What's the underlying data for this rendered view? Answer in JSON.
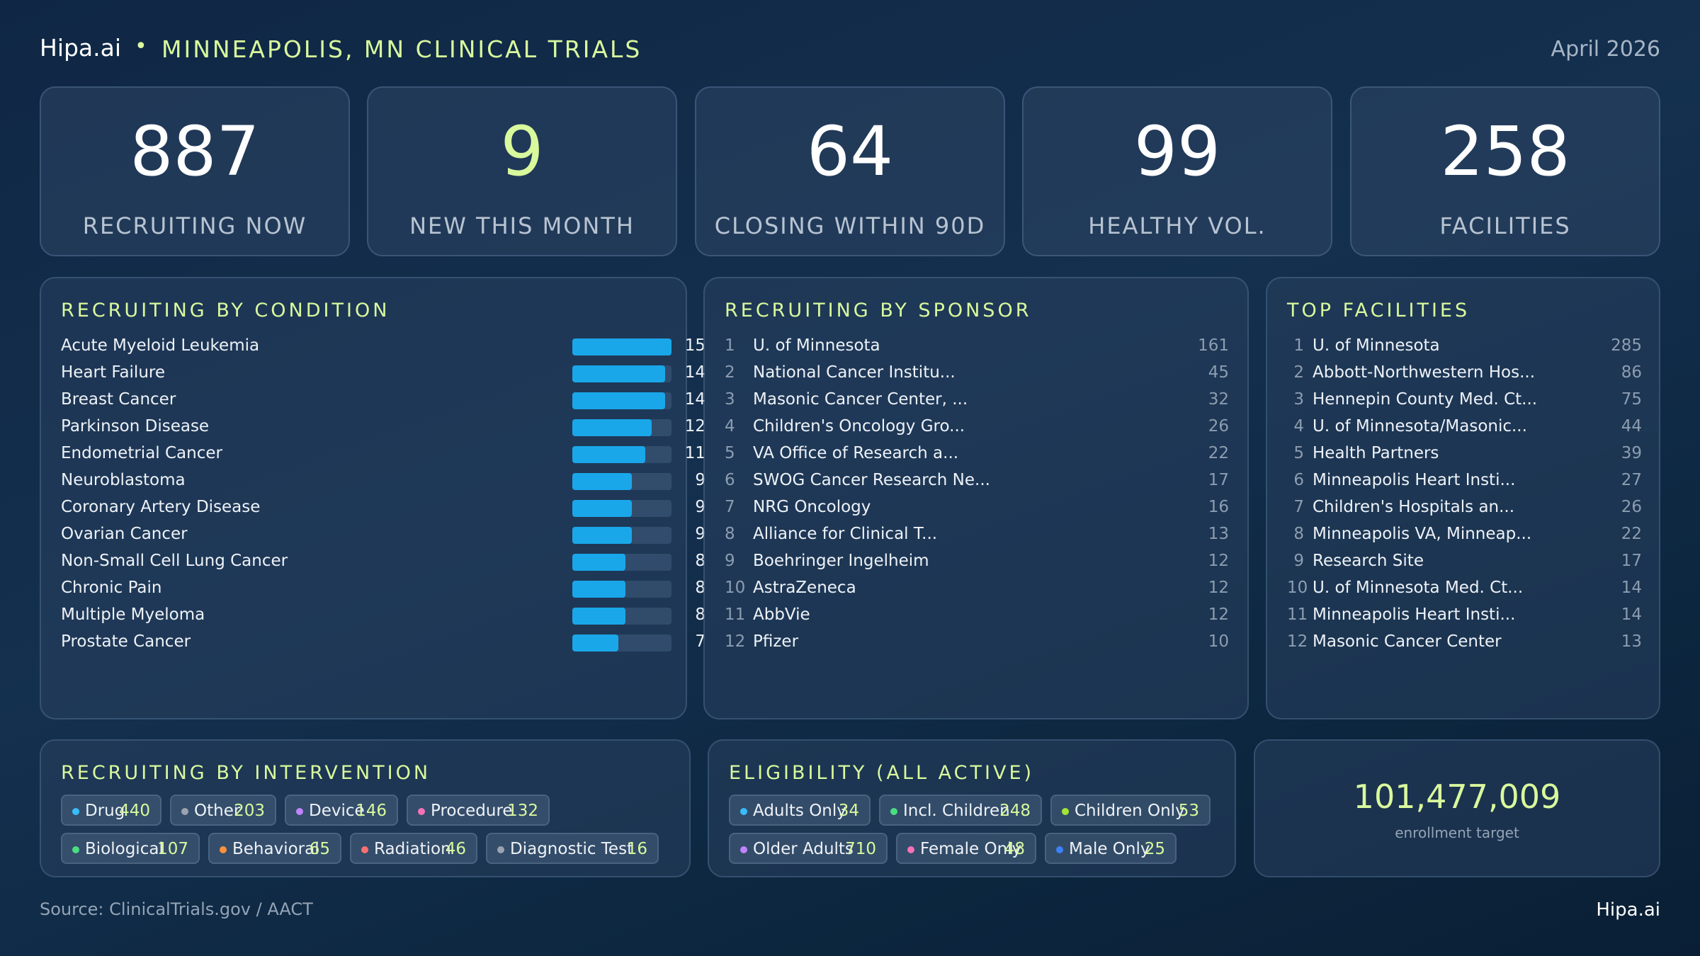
{
  "header": {
    "brand": "Hipa.ai",
    "separator": "•",
    "title": "MINNEAPOLIS, MN CLINICAL TRIALS",
    "date": "April 2026"
  },
  "kpis": [
    {
      "value": "887",
      "label": "RECRUITING NOW"
    },
    {
      "value": "9",
      "label": "NEW THIS MONTH"
    },
    {
      "value": "64",
      "label": "CLOSING WITHIN 90D"
    },
    {
      "value": "99",
      "label": "HEALTHY VOL."
    },
    {
      "value": "258",
      "label": "FACILITIES"
    }
  ],
  "condition": {
    "title": "RECRUITING BY CONDITION",
    "max": 15,
    "bar_color": "#19a7ea",
    "items": [
      {
        "name": "Acute Myeloid Leukemia",
        "value": 15
      },
      {
        "name": "Heart Failure",
        "value": 14
      },
      {
        "name": "Breast Cancer",
        "value": 14
      },
      {
        "name": "Parkinson Disease",
        "value": 12
      },
      {
        "name": "Endometrial Cancer",
        "value": 11
      },
      {
        "name": "Neuroblastoma",
        "value": 9
      },
      {
        "name": "Coronary Artery Disease",
        "value": 9
      },
      {
        "name": "Ovarian Cancer",
        "value": 9
      },
      {
        "name": "Non-Small Cell Lung Cancer",
        "value": 8
      },
      {
        "name": "Chronic Pain",
        "value": 8
      },
      {
        "name": "Multiple Myeloma",
        "value": 8
      },
      {
        "name": "Prostate Cancer",
        "value": 7
      }
    ]
  },
  "sponsor": {
    "title": "RECRUITING BY SPONSOR",
    "items": [
      {
        "rank": "1",
        "name": "U. of Minnesota",
        "value": "161"
      },
      {
        "rank": "2",
        "name": "National Cancer Institu...",
        "value": "45"
      },
      {
        "rank": "3",
        "name": "Masonic Cancer Center, ...",
        "value": "32"
      },
      {
        "rank": "4",
        "name": "Children's Oncology Gro...",
        "value": "26"
      },
      {
        "rank": "5",
        "name": "VA Office of Research a...",
        "value": "22"
      },
      {
        "rank": "6",
        "name": "SWOG Cancer Research Ne...",
        "value": "17"
      },
      {
        "rank": "7",
        "name": "NRG Oncology",
        "value": "16"
      },
      {
        "rank": "8",
        "name": "Alliance for Clinical T...",
        "value": "13"
      },
      {
        "rank": "9",
        "name": "Boehringer Ingelheim",
        "value": "12"
      },
      {
        "rank": "10",
        "name": "AstraZeneca",
        "value": "12"
      },
      {
        "rank": "11",
        "name": "AbbVie",
        "value": "12"
      },
      {
        "rank": "12",
        "name": "Pfizer",
        "value": "10"
      }
    ]
  },
  "facilities": {
    "title": "TOP FACILITIES",
    "items": [
      {
        "rank": "1",
        "name": "U. of Minnesota",
        "value": "285"
      },
      {
        "rank": "2",
        "name": "Abbott-Northwestern Hos...",
        "value": "86"
      },
      {
        "rank": "3",
        "name": "Hennepin County Med. Ct...",
        "value": "75"
      },
      {
        "rank": "4",
        "name": "U. of Minnesota/Masonic...",
        "value": "44"
      },
      {
        "rank": "5",
        "name": "Health Partners",
        "value": "39"
      },
      {
        "rank": "6",
        "name": "Minneapolis Heart Insti...",
        "value": "27"
      },
      {
        "rank": "7",
        "name": "Children's Hospitals an...",
        "value": "26"
      },
      {
        "rank": "8",
        "name": "Minneapolis VA, Minneap...",
        "value": "22"
      },
      {
        "rank": "9",
        "name": "Research Site",
        "value": "17"
      },
      {
        "rank": "10",
        "name": "U. of Minnesota Med. Ct...",
        "value": "14"
      },
      {
        "rank": "11",
        "name": "Minneapolis Heart Insti...",
        "value": "14"
      },
      {
        "rank": "12",
        "name": "Masonic Cancer Center",
        "value": "13"
      }
    ]
  },
  "intervention": {
    "title": "RECRUITING BY INTERVENTION",
    "rows": [
      [
        {
          "label": "Drug",
          "value": "440",
          "color": "#38bdf8"
        },
        {
          "label": "Other",
          "value": "203",
          "color": "#9ca3af"
        },
        {
          "label": "Device",
          "value": "146",
          "color": "#c084fc"
        },
        {
          "label": "Procedure",
          "value": "132",
          "color": "#f472b6"
        }
      ],
      [
        {
          "label": "Biological",
          "value": "107",
          "color": "#4ade80"
        },
        {
          "label": "Behavioral",
          "value": "65",
          "color": "#fb923c"
        },
        {
          "label": "Radiation",
          "value": "46",
          "color": "#f87171"
        },
        {
          "label": "Diagnostic Test",
          "value": "16",
          "color": "#9ca3af"
        }
      ]
    ]
  },
  "eligibility": {
    "title": "ELIGIBILITY (ALL ACTIVE)",
    "rows": [
      [
        {
          "label": "Adults Only",
          "value": "34",
          "color": "#38bdf8"
        },
        {
          "label": "Incl. Children",
          "value": "248",
          "color": "#4ade80"
        },
        {
          "label": "Children Only",
          "value": "53",
          "color": "#a3e635"
        }
      ],
      [
        {
          "label": "Older Adults",
          "value": "710",
          "color": "#c084fc"
        },
        {
          "label": "Female Only",
          "value": "48",
          "color": "#f472b6"
        },
        {
          "label": "Male Only",
          "value": "25",
          "color": "#3b82f6"
        }
      ]
    ]
  },
  "enrollment": {
    "value": "101,477,009",
    "label": "enrollment target"
  },
  "footer": {
    "source": "Source: ClinicalTrials.gov / AACT",
    "brand": "Hipa.ai"
  }
}
